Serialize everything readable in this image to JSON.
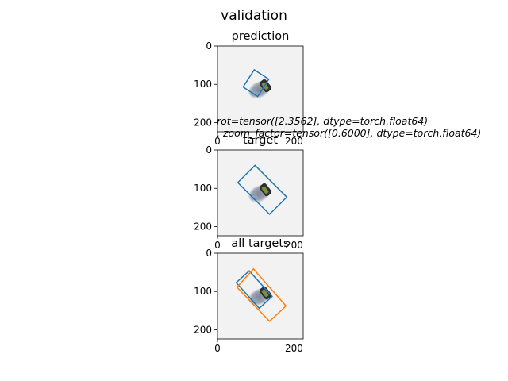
{
  "figure": {
    "title": "validation"
  },
  "chart_data": [
    {
      "type": "image-with-boxes",
      "title": "prediction",
      "xlim": [
        0,
        224
      ],
      "ylim": [
        224,
        0
      ],
      "xticks": [
        0,
        200
      ],
      "yticks": [
        0,
        100,
        200
      ],
      "colors": {
        "blue": "#1f77b4",
        "orange": "#ff7f0e"
      },
      "boxes": [
        {
          "color": "#1f77b4",
          "points": [
            [
              67,
              107
            ],
            [
              96,
              62
            ],
            [
              134,
              87
            ],
            [
              105,
              132
            ]
          ]
        }
      ]
    },
    {
      "type": "image-with-boxes",
      "title": "target",
      "xlim": [
        0,
        224
      ],
      "ylim": [
        224,
        0
      ],
      "xticks": [
        0,
        200
      ],
      "yticks": [
        0,
        100,
        200
      ],
      "boxes": [
        {
          "color": "#1f77b4",
          "points": [
            [
              53,
              85
            ],
            [
              98,
              40
            ],
            [
              181,
              123
            ],
            [
              136,
              168
            ]
          ]
        }
      ]
    },
    {
      "type": "image-with-boxes",
      "title": "all targets",
      "xlim": [
        0,
        224
      ],
      "ylim": [
        224,
        0
      ],
      "xticks": [
        0,
        200
      ],
      "yticks": [
        0,
        100,
        200
      ],
      "boxes": [
        {
          "color": "#1f77b4",
          "points": [
            [
              49,
              77
            ],
            [
              83,
              46
            ],
            [
              143,
              113
            ],
            [
              109,
              144
            ]
          ]
        },
        {
          "color": "#ff7f0e",
          "points": [
            [
              51,
              89
            ],
            [
              94,
              41
            ],
            [
              179,
              138
            ],
            [
              136,
              178
            ]
          ]
        }
      ]
    }
  ],
  "annotation": {
    "line1": "rot=tensor([2.3562], dtype=torch.float64)",
    "line2": ", zoom_factor=tensor([0.6000], dtype=torch.float64)"
  }
}
